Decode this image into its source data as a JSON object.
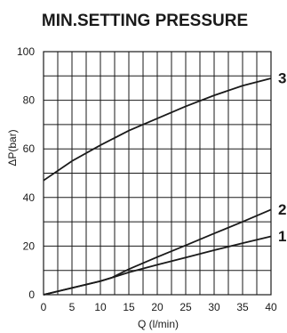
{
  "chart_data": {
    "type": "line",
    "title": "MIN.SETTING PRESSURE",
    "xlabel": "Q (l/min)",
    "ylabel": "ΔP(bar)",
    "xlim": [
      0,
      40
    ],
    "ylim": [
      0,
      100
    ],
    "x_ticks": [
      "0",
      "5",
      "10",
      "15",
      "20",
      "25",
      "30",
      "35",
      "40"
    ],
    "y_ticks": [
      "0",
      "20",
      "40",
      "60",
      "80",
      "100"
    ],
    "grid": true,
    "series": [
      {
        "name": "1",
        "x": [
          0,
          5,
          10,
          12,
          15,
          20,
          25,
          30,
          35,
          40
        ],
        "y": [
          0,
          2.8,
          5.6,
          7,
          9.2,
          12.3,
          15.3,
          18.3,
          21.2,
          24
        ]
      },
      {
        "name": "2",
        "x": [
          0,
          5,
          10,
          12,
          15,
          20,
          25,
          30,
          35,
          40
        ],
        "y": [
          0,
          2.8,
          5.6,
          7,
          10.5,
          15.5,
          20.3,
          25.2,
          30,
          35
        ]
      },
      {
        "name": "3",
        "x": [
          0,
          5,
          10,
          15,
          20,
          25,
          30,
          35,
          40
        ],
        "y": [
          47,
          55,
          61.5,
          67.5,
          72.5,
          77.5,
          82,
          86,
          89
        ]
      }
    ]
  }
}
